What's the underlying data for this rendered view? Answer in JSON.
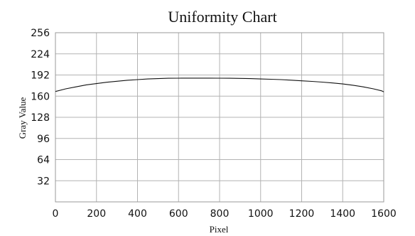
{
  "chart_data": {
    "type": "line",
    "title": "Uniformity Chart",
    "xlabel": "Pixel",
    "ylabel": "Gray Value",
    "xlim": [
      0,
      1600
    ],
    "ylim": [
      0,
      256
    ],
    "x_ticks": [
      0,
      200,
      400,
      600,
      800,
      1000,
      1200,
      1400,
      1600
    ],
    "y_ticks": [
      32,
      64,
      96,
      128,
      160,
      192,
      224,
      256
    ],
    "grid": true,
    "legend": "none",
    "colors": {
      "series": "#111111",
      "grid": "#b3b3b3"
    },
    "series": [
      {
        "x": [
          0,
          50,
          100,
          150,
          200,
          250,
          300,
          350,
          400,
          450,
          500,
          550,
          600,
          650,
          700,
          750,
          800,
          850,
          900,
          950,
          1000,
          1050,
          1100,
          1150,
          1200,
          1250,
          1300,
          1350,
          1400,
          1450,
          1500,
          1550,
          1590,
          1600
        ],
        "y": [
          167,
          171,
          174,
          177,
          179,
          181,
          182.5,
          184,
          185,
          186,
          186.5,
          187,
          187.2,
          187.3,
          187.3,
          187.3,
          187.2,
          187,
          186.8,
          186.5,
          186,
          185.5,
          185,
          184.2,
          183.2,
          182.3,
          181.2,
          180,
          178.5,
          176.5,
          174,
          171,
          168,
          166.5
        ]
      }
    ]
  }
}
